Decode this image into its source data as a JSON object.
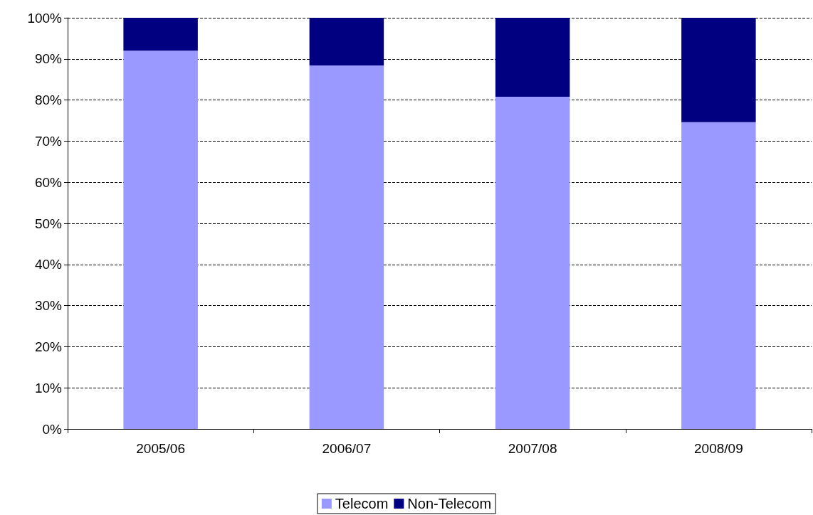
{
  "chart_data": {
    "type": "bar",
    "stacked": true,
    "categories": [
      "2005/06",
      "2006/07",
      "2007/08",
      "2008/09"
    ],
    "series": [
      {
        "name": "Telecom",
        "color": "#9999ff",
        "values": [
          92,
          88.4,
          80.8,
          74.6
        ]
      },
      {
        "name": "Non-Telecom",
        "color": "#000080",
        "values": [
          8,
          11.6,
          19.2,
          25.4
        ]
      }
    ],
    "ylim": [
      0,
      100
    ],
    "yticks": [
      {
        "value": 0,
        "label": "0%"
      },
      {
        "value": 10,
        "label": "10%"
      },
      {
        "value": 20,
        "label": "20%"
      },
      {
        "value": 30,
        "label": "30%"
      },
      {
        "value": 40,
        "label": "40%"
      },
      {
        "value": 50,
        "label": "50%"
      },
      {
        "value": 60,
        "label": "60%"
      },
      {
        "value": 70,
        "label": "70%"
      },
      {
        "value": 80,
        "label": "80%"
      },
      {
        "value": 90,
        "label": "90%"
      },
      {
        "value": 100,
        "label": "100%"
      }
    ],
    "grid": "y",
    "legend": "bottom"
  }
}
